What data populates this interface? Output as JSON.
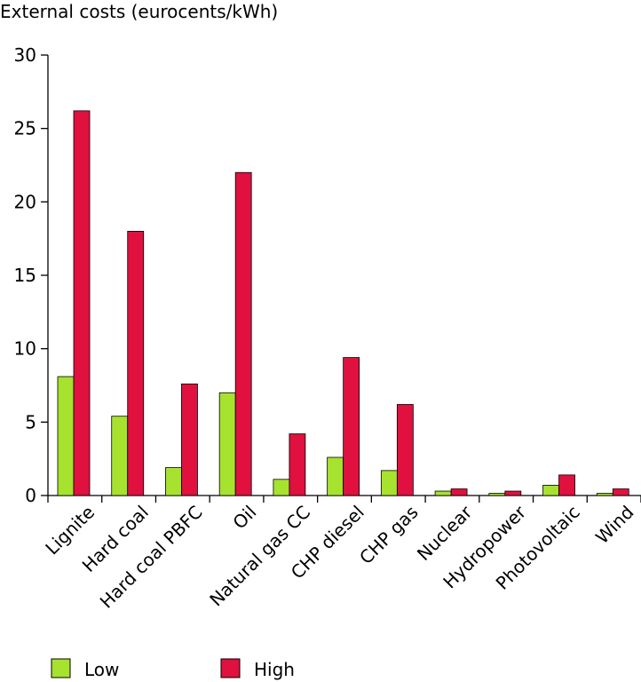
{
  "chart_data": {
    "type": "bar",
    "title": "External costs (eurocents/kWh)",
    "xlabel": "",
    "ylabel": "",
    "ylim": [
      0,
      30
    ],
    "yticks": [
      "0",
      "5",
      "10",
      "15",
      "20",
      "25",
      "30"
    ],
    "grid": false,
    "legend_position": "bottom",
    "categories": [
      "Lignite",
      "Hard coal",
      "Hard coal PBFC",
      "Oil",
      "Natural gas CC",
      "CHP diesel",
      "CHP gas",
      "Nuclear",
      "Hydropower",
      "Photovoltaic",
      "Wind"
    ],
    "series": [
      {
        "name": "Low",
        "color": "#a6e22e",
        "values": [
          8.1,
          5.4,
          1.9,
          7.0,
          1.1,
          2.6,
          1.7,
          0.3,
          0.15,
          0.7,
          0.15
        ]
      },
      {
        "name": "High",
        "color": "#e0103f",
        "values": [
          26.2,
          18.0,
          7.6,
          22.0,
          4.2,
          9.4,
          6.2,
          0.45,
          0.3,
          1.4,
          0.45
        ]
      }
    ]
  }
}
